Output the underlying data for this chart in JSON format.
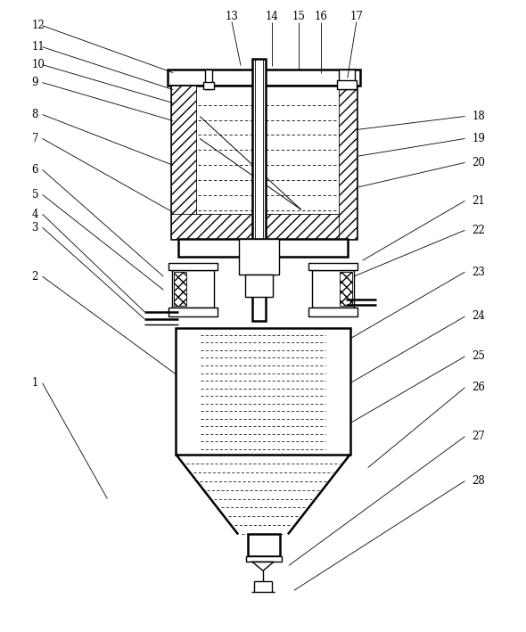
{
  "bg_color": "#ffffff",
  "line_color": "#000000",
  "fig_width": 5.9,
  "fig_height": 7.09,
  "label_fontsize": 8.5
}
